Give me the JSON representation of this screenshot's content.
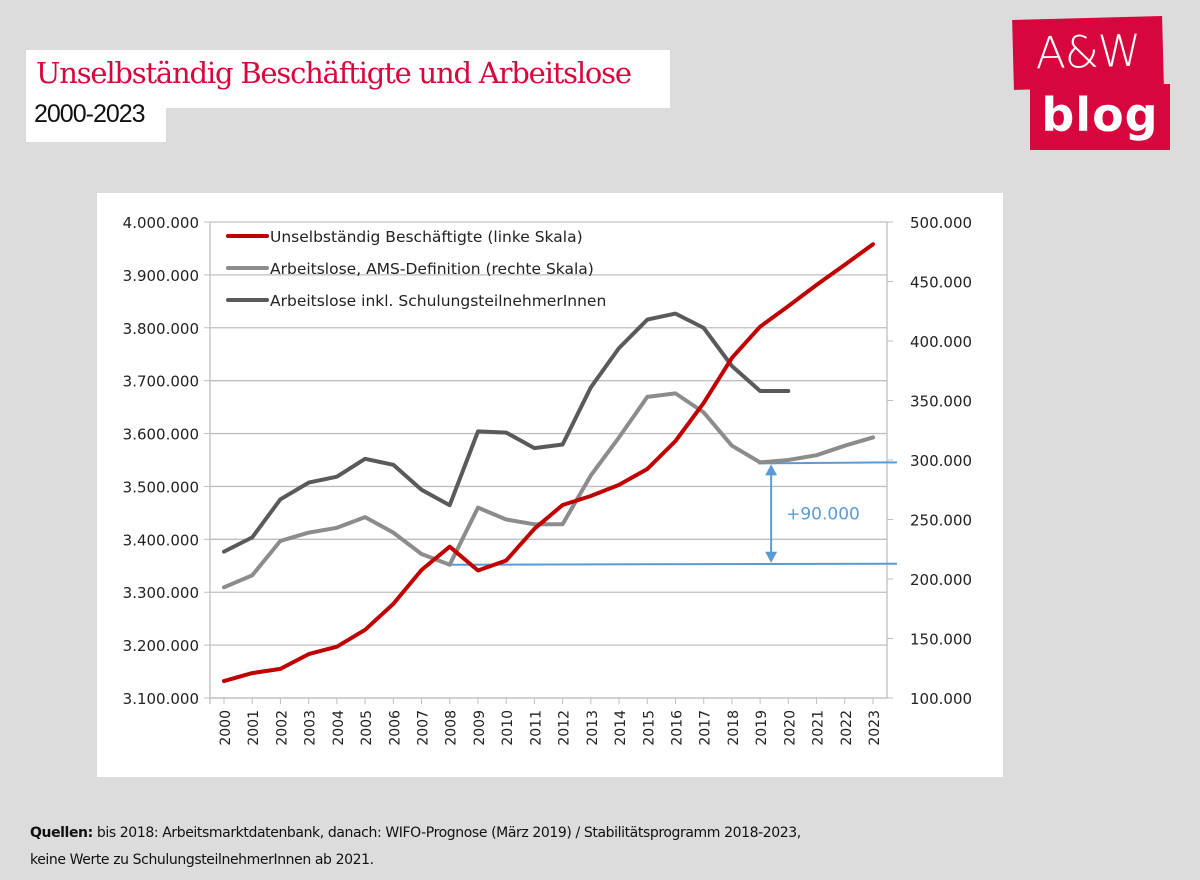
{
  "header": {
    "title": "Unselbständig Beschäftigte und Arbeitslose",
    "subtitle": "2000-2023"
  },
  "logo": {
    "line1": "A&W",
    "line2": "blog",
    "color": "#d7063d"
  },
  "footer": {
    "label": "Quellen:",
    "line1": " bis 2018: Arbeitsmarktdatenbank, danach: WIFO-Prognose (März 2019) / Stabilitätsprogramm 2018-2023,",
    "line2": "keine Werte zu SchulungsteilnehmerInnen ab 2021."
  },
  "chart_data": {
    "type": "line",
    "title": "",
    "x": [
      2000,
      2001,
      2002,
      2003,
      2004,
      2005,
      2006,
      2007,
      2008,
      2009,
      2010,
      2011,
      2012,
      2013,
      2014,
      2015,
      2016,
      2017,
      2018,
      2019,
      2020,
      2021,
      2022,
      2023
    ],
    "x_tick_labels": [
      "2000",
      "2001",
      "2002",
      "2003",
      "2004",
      "2005",
      "2006",
      "2007",
      "2008",
      "2009",
      "2010",
      "2011",
      "2012",
      "2013",
      "2014",
      "2015",
      "2016",
      "2017",
      "2018",
      "2019",
      "2020",
      "2021",
      "2022",
      "2023"
    ],
    "y_left": {
      "min": 3100000,
      "max": 4000000,
      "step": 100000,
      "tick_labels": [
        "4.000.000",
        "3.900.000",
        "3.800.000",
        "3.700.000",
        "3.600.000",
        "3.500.000",
        "3.400.000",
        "3.300.000",
        "3.200.000",
        "3.100.000"
      ]
    },
    "y_right": {
      "min": 100000,
      "max": 500000,
      "step": 50000,
      "tick_labels": [
        "500.000",
        "450.000",
        "400.000",
        "350.000",
        "300.000",
        "250.000",
        "200.000",
        "150.000",
        "100.000"
      ]
    },
    "grid": true,
    "legend_position": "top-left",
    "series": [
      {
        "name": "Unselbständig Beschäftigte (linke Skala)",
        "axis": "left",
        "color": "#c00000",
        "values": [
          3132000,
          3147000,
          3155000,
          3183000,
          3197000,
          3229000,
          3278000,
          3342000,
          3386000,
          3341000,
          3360000,
          3420000,
          3465000,
          3482000,
          3503000,
          3533000,
          3586000,
          3658000,
          3743000,
          3802000,
          3841000,
          3881000,
          3919000,
          3958000
        ]
      },
      {
        "name": "Arbeitslose, AMS-Definition (rechte Skala)",
        "axis": "right",
        "color": "#8c8c8c",
        "values": [
          193000,
          203000,
          232000,
          239000,
          243000,
          252000,
          239000,
          221000,
          212000,
          260000,
          250000,
          246000,
          246000,
          287000,
          319000,
          353000,
          356000,
          340000,
          312000,
          298000,
          300000,
          304000,
          312000,
          319000
        ]
      },
      {
        "name": "Arbeitslose inkl. SchulungsteilnehmerInnen",
        "axis": "right",
        "color": "#5a5a5a",
        "values": [
          223000,
          235000,
          267000,
          281000,
          286000,
          301000,
          296000,
          275000,
          262000,
          324000,
          323000,
          310000,
          313000,
          361000,
          394000,
          418000,
          423000,
          411000,
          379000,
          358000,
          358000,
          null,
          null,
          null
        ]
      }
    ],
    "annotation": {
      "text": "+90.000",
      "color": "#5b9bd5",
      "from_year": 2008,
      "from_value": 212000,
      "to_year": 2019,
      "to_value": 298000,
      "axis": "right"
    }
  }
}
